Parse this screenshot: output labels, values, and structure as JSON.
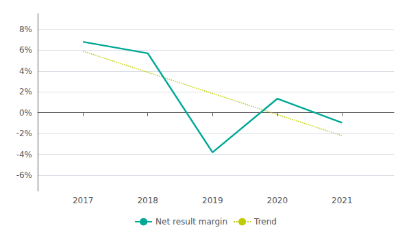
{
  "chart_data": {
    "type": "line",
    "x": [
      2017,
      2018,
      2019,
      2020,
      2021
    ],
    "series": [
      {
        "name": "Net result margin",
        "color": "#00A896",
        "line_style": "solid",
        "x": [
          2017,
          2018,
          2019,
          2020,
          2021
        ],
        "values": [
          6.8,
          5.7,
          -3.8,
          1.35,
          -0.96
        ]
      },
      {
        "name": "Trend",
        "color": "#BFCC00",
        "line_style": "dotted",
        "x": [
          2017,
          2021
        ],
        "values": [
          5.9,
          -2.2
        ]
      }
    ],
    "xlim": [
      2016.3,
      2021.8
    ],
    "xticks": [
      2017,
      2018,
      2019,
      2020,
      2021
    ],
    "ylim": [
      -7.5,
      9.5
    ],
    "yticks": [
      {
        "value": -6,
        "label": "-6%"
      },
      {
        "value": -4,
        "label": "-4%"
      },
      {
        "value": -2,
        "label": "-2%"
      },
      {
        "value": 0,
        "label": "0%"
      },
      {
        "value": 2,
        "label": "2%"
      },
      {
        "value": 4,
        "label": "4%"
      },
      {
        "value": 6,
        "label": "6%"
      },
      {
        "value": 8,
        "label": "8%"
      }
    ],
    "grid": true,
    "legend": "bottom"
  }
}
